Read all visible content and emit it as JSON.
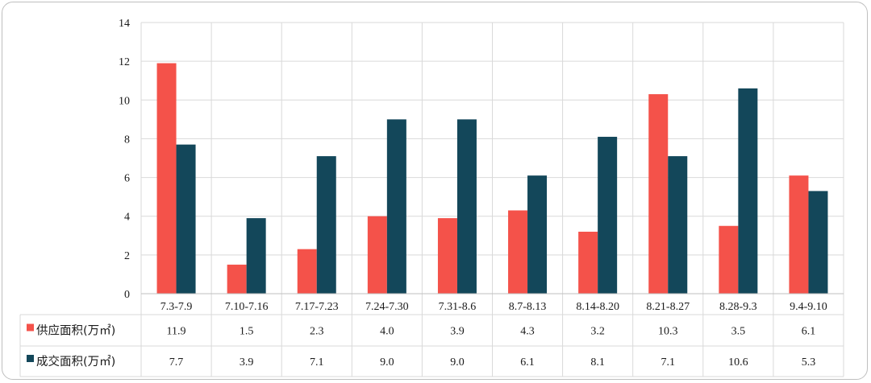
{
  "chart_data": {
    "type": "bar",
    "categories": [
      "7.3-7.9",
      "7.10-7.16",
      "7.17-7.23",
      "7.24-7.30",
      "7.31-8.6",
      "8.7-8.13",
      "8.14-8.20",
      "8.21-8.27",
      "8.28-9.3",
      "9.4-9.10"
    ],
    "series": [
      {
        "name": "供应面积(万㎡)",
        "values": [
          11.9,
          1.5,
          2.3,
          4.0,
          3.9,
          4.3,
          3.2,
          10.3,
          3.5,
          6.1
        ],
        "labels": [
          "11.9",
          "1.5",
          "2.3",
          "4.0",
          "3.9",
          "4.3",
          "3.2",
          "10.3",
          "3.5",
          "6.1"
        ],
        "color": "#f4524a"
      },
      {
        "name": "成交面积(万㎡)",
        "values": [
          7.7,
          3.9,
          7.1,
          9.0,
          9.0,
          6.1,
          8.1,
          7.1,
          10.6,
          5.3
        ],
        "labels": [
          "7.7",
          "3.9",
          "7.1",
          "9.0",
          "9.0",
          "6.1",
          "8.1",
          "7.1",
          "10.6",
          "5.3"
        ],
        "color": "#13475a"
      }
    ],
    "yticks": [
      "0",
      "2",
      "4",
      "6",
      "8",
      "10",
      "12",
      "14"
    ],
    "ylim": [
      0,
      14
    ],
    "grid": true,
    "legend": "data-table"
  }
}
